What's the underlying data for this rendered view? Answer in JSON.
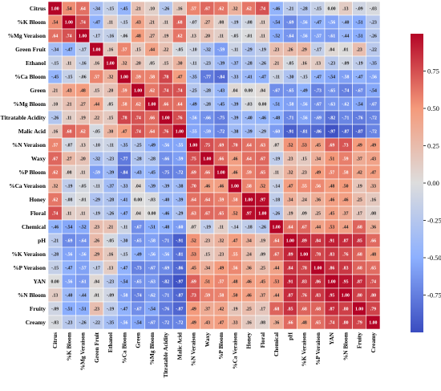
{
  "chart_data": {
    "type": "heatmap",
    "variables": [
      "Citrus",
      "%K Bloom",
      "%Mg Veraison",
      "Green Fruit",
      "Ethanol",
      "%Ca Bloom",
      "Green",
      "%Mg Bloom",
      "Titratable Acidity",
      "Malic Acid",
      "%N Veraison",
      "Waxy",
      "%P Bloom",
      "%Ca Veraison",
      "Honey",
      "Floral",
      "Chemical",
      "pH",
      "%K Veraison",
      "%P Veraison",
      "YAN",
      "%N Bloom",
      "Fruity",
      "Creamy"
    ],
    "matrix": [
      [
        1.0,
        0.54,
        0.64,
        -0.34,
        -0.15,
        -0.45,
        0.21,
        0.1,
        -0.26,
        0.16,
        0.57,
        0.67,
        0.62,
        0.32,
        0.62,
        0.74,
        -0.46,
        -0.21,
        -0.28,
        -0.15,
        0.0,
        0.13,
        -0.09,
        -0.03
      ],
      [
        0.54,
        1.0,
        0.74,
        -0.47,
        0.11,
        -0.15,
        0.43,
        0.21,
        0.11,
        0.68,
        -0.07,
        0.27,
        0.08,
        -0.19,
        -0.08,
        0.11,
        -0.54,
        -0.69,
        -0.56,
        -0.47,
        -0.56,
        -0.4,
        -0.51,
        -0.23
      ],
      [
        0.64,
        0.74,
        1.0,
        -0.17,
        -0.16,
        -0.06,
        0.48,
        0.27,
        0.19,
        0.62,
        0.13,
        0.2,
        0.11,
        -0.05,
        -0.01,
        0.11,
        -0.52,
        -0.64,
        -0.56,
        -0.57,
        -0.61,
        -0.44,
        -0.51,
        -0.26
      ],
      [
        -0.34,
        -0.47,
        -0.17,
        1.0,
        0.16,
        0.57,
        0.15,
        0.44,
        0.22,
        -0.05,
        -0.1,
        -0.32,
        -0.59,
        -0.11,
        -0.29,
        -0.19,
        0.23,
        0.26,
        0.29,
        -0.17,
        0.04,
        0.01,
        0.23,
        -0.22
      ],
      [
        -0.15,
        0.11,
        -0.16,
        0.16,
        1.0,
        0.32,
        0.2,
        0.05,
        0.15,
        0.3,
        -0.11,
        -0.23,
        -0.39,
        -0.37,
        -0.28,
        -0.26,
        0.21,
        -0.05,
        0.16,
        0.13,
        -0.23,
        -0.09,
        -0.19,
        -0.35
      ],
      [
        -0.45,
        -0.15,
        -0.06,
        0.57,
        0.32,
        1.0,
        0.59,
        0.58,
        0.78,
        0.47,
        -0.35,
        -0.77,
        -0.84,
        -0.33,
        -0.41,
        -0.47,
        -0.11,
        -0.3,
        -0.15,
        -0.47,
        -0.54,
        -0.58,
        -0.47,
        -0.56
      ],
      [
        0.21,
        0.43,
        0.48,
        0.15,
        0.2,
        0.59,
        1.0,
        0.62,
        0.74,
        0.74,
        -0.25,
        -0.28,
        -0.43,
        0.04,
        0.0,
        0.04,
        -0.67,
        -0.65,
        -0.49,
        -0.73,
        -0.65,
        -0.74,
        -0.67,
        -0.54
      ],
      [
        0.1,
        0.21,
        0.27,
        0.44,
        0.05,
        0.58,
        0.62,
        1.0,
        0.66,
        0.64,
        -0.49,
        -0.28,
        -0.45,
        -0.39,
        -0.03,
        0.0,
        -0.51,
        -0.58,
        -0.56,
        -0.67,
        -0.63,
        -0.62,
        -0.54,
        -0.67
      ],
      [
        -0.26,
        0.11,
        0.19,
        0.22,
        0.15,
        0.78,
        0.74,
        0.66,
        1.0,
        0.76,
        -0.56,
        -0.66,
        -0.75,
        -0.39,
        -0.4,
        -0.46,
        -0.48,
        -0.71,
        -0.56,
        -0.69,
        -0.82,
        -0.71,
        -0.76,
        -0.72
      ],
      [
        0.16,
        0.68,
        0.62,
        -0.05,
        0.3,
        0.47,
        0.74,
        0.64,
        0.76,
        1.0,
        -0.55,
        -0.59,
        -0.72,
        -0.38,
        -0.39,
        -0.29,
        -0.6,
        -0.91,
        -0.81,
        -0.86,
        -0.97,
        -0.87,
        -0.87,
        -0.72
      ],
      [
        0.57,
        -0.07,
        0.13,
        -0.1,
        -0.11,
        -0.35,
        -0.25,
        -0.49,
        -0.56,
        -0.55,
        1.0,
        0.75,
        0.69,
        0.7,
        0.64,
        0.63,
        0.07,
        0.52,
        0.53,
        0.45,
        0.69,
        0.73,
        0.49,
        0.49
      ],
      [
        0.67,
        0.27,
        0.2,
        -0.32,
        -0.23,
        -0.77,
        -0.28,
        -0.28,
        -0.66,
        -0.59,
        0.75,
        1.0,
        0.66,
        0.46,
        0.64,
        0.67,
        -0.19,
        0.23,
        0.15,
        0.34,
        0.51,
        0.59,
        0.37,
        0.43
      ],
      [
        0.62,
        0.08,
        0.11,
        -0.59,
        -0.39,
        -0.84,
        -0.43,
        -0.45,
        -0.75,
        -0.72,
        0.69,
        0.66,
        1.0,
        0.46,
        0.59,
        0.65,
        0.11,
        0.32,
        0.23,
        0.49,
        0.57,
        0.58,
        0.42,
        0.47
      ],
      [
        0.32,
        -0.19,
        -0.05,
        -0.11,
        -0.37,
        -0.33,
        0.04,
        -0.39,
        -0.39,
        -0.38,
        0.7,
        0.46,
        0.46,
        1.0,
        0.58,
        0.52,
        -0.14,
        0.47,
        0.55,
        0.56,
        0.48,
        0.5,
        0.19,
        0.33
      ],
      [
        0.62,
        -0.08,
        -0.01,
        -0.29,
        -0.28,
        -0.41,
        0.0,
        -0.03,
        -0.4,
        -0.39,
        0.64,
        0.64,
        0.59,
        0.58,
        1.0,
        0.97,
        -0.18,
        0.34,
        0.24,
        0.36,
        0.46,
        0.46,
        0.25,
        0.16
      ],
      [
        0.74,
        0.11,
        0.11,
        -0.19,
        -0.26,
        -0.47,
        0.04,
        0.0,
        -0.46,
        -0.29,
        0.63,
        0.67,
        0.65,
        0.52,
        0.97,
        1.0,
        -0.26,
        0.19,
        0.09,
        0.25,
        0.45,
        0.37,
        0.17,
        0.08
      ],
      [
        -0.46,
        -0.54,
        -0.52,
        0.23,
        0.21,
        -0.11,
        -0.67,
        -0.51,
        -0.48,
        -0.6,
        0.07,
        -0.19,
        0.11,
        -0.14,
        -0.18,
        -0.26,
        1.0,
        0.64,
        0.67,
        0.44,
        0.53,
        0.44,
        0.68,
        0.36
      ],
      [
        -0.21,
        -0.69,
        -0.64,
        0.26,
        -0.05,
        -0.3,
        -0.65,
        -0.58,
        -0.71,
        -0.91,
        0.52,
        0.23,
        0.32,
        0.47,
        0.34,
        0.19,
        0.64,
        1.0,
        0.89,
        0.84,
        0.91,
        0.87,
        0.85,
        0.66
      ],
      [
        -0.28,
        -0.56,
        -0.56,
        0.29,
        0.16,
        -0.15,
        -0.49,
        -0.56,
        -0.56,
        -0.81,
        0.53,
        0.15,
        0.23,
        0.55,
        0.24,
        0.09,
        0.67,
        0.89,
        1.0,
        0.78,
        0.83,
        0.76,
        0.68,
        0.48
      ],
      [
        -0.15,
        -0.47,
        -0.57,
        -0.17,
        0.13,
        -0.47,
        -0.73,
        -0.67,
        -0.69,
        -0.86,
        0.45,
        0.34,
        0.49,
        0.56,
        0.36,
        0.25,
        0.44,
        0.84,
        0.78,
        1.0,
        0.86,
        0.83,
        0.68,
        0.65
      ],
      [
        0.0,
        -0.56,
        -0.61,
        0.04,
        -0.23,
        -0.54,
        -0.65,
        -0.63,
        -0.82,
        -0.97,
        0.69,
        0.51,
        0.57,
        0.48,
        0.46,
        0.45,
        0.53,
        0.91,
        0.83,
        0.86,
        1.0,
        0.95,
        0.87,
        0.74
      ],
      [
        0.13,
        -0.4,
        -0.44,
        0.01,
        -0.09,
        -0.58,
        -0.74,
        -0.62,
        -0.71,
        -0.87,
        0.73,
        0.59,
        0.58,
        0.5,
        0.46,
        0.37,
        0.44,
        0.87,
        0.76,
        0.83,
        0.95,
        1.0,
        0.8,
        0.8
      ],
      [
        -0.09,
        -0.51,
        -0.51,
        0.23,
        -0.19,
        -0.47,
        -0.67,
        -0.54,
        -0.76,
        -0.87,
        0.49,
        0.37,
        0.42,
        0.19,
        0.25,
        0.17,
        0.68,
        0.85,
        0.68,
        0.68,
        0.87,
        0.8,
        1.0,
        0.79
      ],
      [
        -0.03,
        -0.23,
        -0.26,
        -0.22,
        -0.35,
        -0.56,
        -0.54,
        -0.67,
        -0.72,
        -0.72,
        0.49,
        0.43,
        0.47,
        0.33,
        0.16,
        0.08,
        0.36,
        0.66,
        0.48,
        0.65,
        0.74,
        0.8,
        0.79,
        1.0
      ]
    ],
    "value_range": [
      -1,
      1
    ],
    "colormap": {
      "low": "#3a4cc0",
      "mid": "#dddddd",
      "high": "#b40426"
    },
    "colorbar": {
      "position": "right",
      "ticks": [
        0.75,
        0.5,
        0.25,
        0.0,
        -0.25,
        -0.5,
        -0.75
      ],
      "tick_labels": [
        "0.75",
        "0.50",
        "0.25",
        "0.00",
        "-0.25",
        "-0.50",
        "-0.75"
      ]
    },
    "grid": true,
    "annotated": true
  }
}
